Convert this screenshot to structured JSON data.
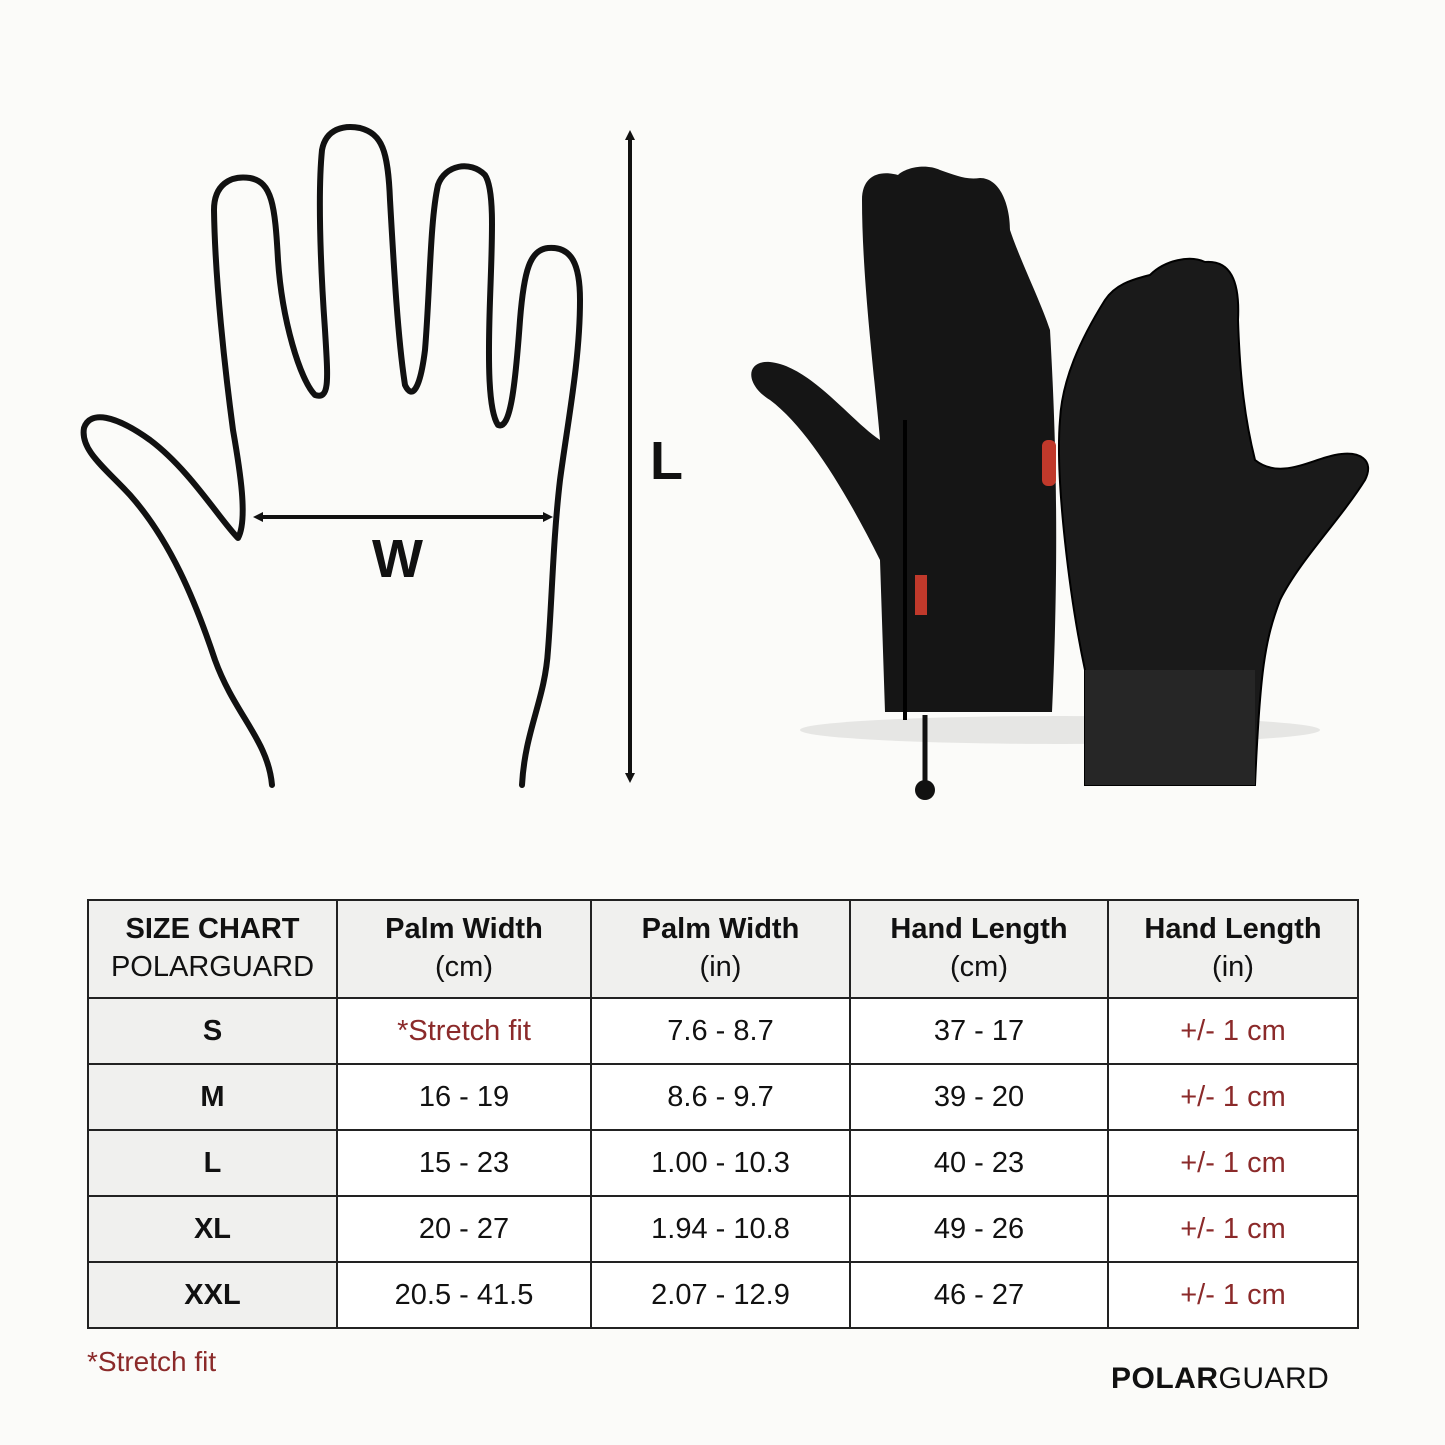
{
  "diagram": {
    "width_label": "W",
    "length_label": "L",
    "icons": [
      "hand-outline-icon",
      "width-arrow-icon",
      "length-arrow-icon",
      "gloves-photo"
    ]
  },
  "table": {
    "headers": [
      {
        "title": "SIZE CHART",
        "sub": "POLARGUARD"
      },
      {
        "title": "Palm Width",
        "sub": "(cm)"
      },
      {
        "title": "Palm Width",
        "sub": "(in)"
      },
      {
        "title": "Hand Length",
        "sub": "(cm)"
      },
      {
        "title": "Hand Length",
        "sub": "(in)"
      }
    ],
    "rows": [
      {
        "size": "S",
        "palm_cm": "*Stretch fit",
        "palm_in": "7.6 - 8.7",
        "length_cm": "37 - 17",
        "length_in": "+/- 1 cm"
      },
      {
        "size": "M",
        "palm_cm": "16 - 19",
        "palm_in": "8.6 - 9.7",
        "length_cm": "39 - 20",
        "length_in": "+/- 1 cm"
      },
      {
        "size": "L",
        "palm_cm": "15 - 23",
        "palm_in": "1.00 - 10.3",
        "length_cm": "40 - 23",
        "length_in": "+/- 1 cm"
      },
      {
        "size": "XL",
        "palm_cm": "20 - 27",
        "palm_in": "1.94 - 10.8",
        "length_cm": "49 - 26",
        "length_in": "+/- 1 cm"
      },
      {
        "size": "XXL",
        "palm_cm": "20.5 - 41.5",
        "palm_in": "2.07 - 12.9",
        "length_cm": "46 - 27",
        "length_in": "+/- 1 cm"
      }
    ]
  },
  "footnote": "*Stretch fit",
  "brand": {
    "bold": "POLAR",
    "light": "GUARD"
  },
  "colors": {
    "accent_red": "#8b2a2a",
    "header_bg": "#f0f0ee",
    "border": "#222222"
  }
}
